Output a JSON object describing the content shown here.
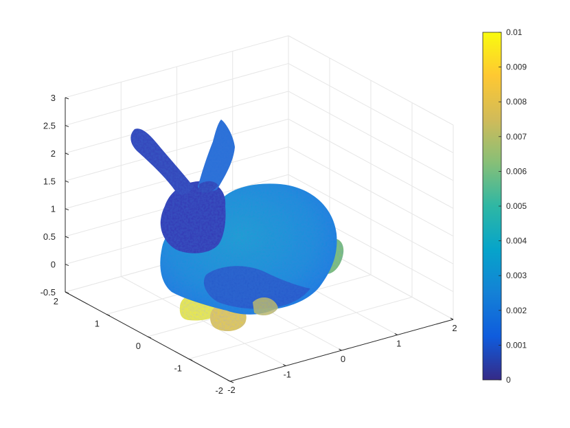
{
  "chart_data": {
    "type": "scatter",
    "subtype": "3d-surface-point-cloud",
    "title": "",
    "xlabel": "",
    "ylabel": "",
    "zlabel": "",
    "xlim": [
      -2,
      2
    ],
    "ylim": [
      -2,
      2
    ],
    "zlim": [
      -0.5,
      3
    ],
    "x_ticks": [
      "-2",
      "-1",
      "0",
      "1",
      "2"
    ],
    "y_ticks": [
      "-2",
      "-1",
      "0",
      "1",
      "2"
    ],
    "z_ticks": [
      "-0.5",
      "0",
      "0.5",
      "1",
      "1.5",
      "2",
      "2.5",
      "3"
    ],
    "grid": true,
    "box": false,
    "colormap": "parula",
    "colorbar": {
      "position": "right",
      "limits": [
        0,
        0.01
      ],
      "ticks": [
        "0",
        "0.001",
        "0.002",
        "0.003",
        "0.004",
        "0.005",
        "0.006",
        "0.007",
        "0.008",
        "0.009",
        "0.01"
      ]
    },
    "object": "Stanford bunny",
    "color_by_region": [
      {
        "region": "ears",
        "value": 0.0015
      },
      {
        "region": "head",
        "value": 0.001
      },
      {
        "region": "back",
        "value": 0.0035
      },
      {
        "region": "belly",
        "value": 0.002
      },
      {
        "region": "tail",
        "value": 0.0065
      },
      {
        "region": "front paws",
        "value": 0.0095
      }
    ]
  },
  "colors": {
    "parula": [
      "#352a87",
      "#0f5cdd",
      "#1481d6",
      "#06a4ca",
      "#2eb7a4",
      "#87bf77",
      "#d1bb59",
      "#fec832",
      "#f9fb0e"
    ],
    "grid": "#e6e6e6",
    "axis": "#262626"
  }
}
